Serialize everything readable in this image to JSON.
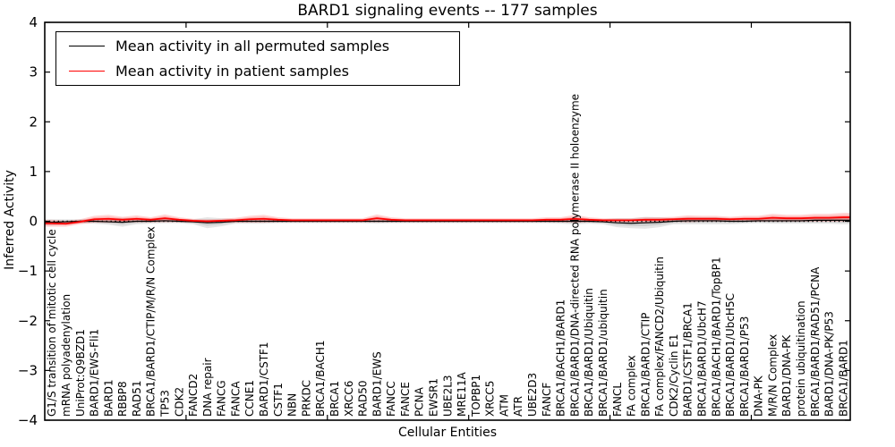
{
  "figure": {
    "title": "BARD1 signaling events -- 177 samples",
    "xlabel": "Cellular Entities",
    "ylabel": "Inferred Activity"
  },
  "legend": {
    "items": [
      {
        "label": "Mean activity in all permuted samples",
        "color": "#000000"
      },
      {
        "label": "Mean activity in patient samples",
        "color": "#ff0000"
      }
    ]
  },
  "colors": {
    "permuted_line": "#000000",
    "permuted_band": "rgba(0,0,0,0.10)",
    "patient_line": "#ff0000",
    "patient_band": "rgba(255,0,0,0.16)",
    "zero_line": "#000000",
    "spine": "#000000"
  },
  "chart_data": {
    "type": "line",
    "title": "BARD1 signaling events -- 177 samples",
    "xlabel": "Cellular Entities",
    "ylabel": "Inferred Activity",
    "ylim": [
      -4,
      4
    ],
    "grid": false,
    "zero_line_dotted": true,
    "legend_position": "upper left",
    "yticks": [
      {
        "v": 4,
        "label": "4"
      },
      {
        "v": 3,
        "label": "3"
      },
      {
        "v": 2,
        "label": "2"
      },
      {
        "v": 1,
        "label": "1"
      },
      {
        "v": 0,
        "label": "0"
      },
      {
        "v": -1,
        "label": "−1"
      },
      {
        "v": -2,
        "label": "−2"
      },
      {
        "v": -3,
        "label": "−3"
      },
      {
        "v": -4,
        "label": "−4"
      }
    ],
    "x_major_ticks": [
      10,
      20,
      30,
      40,
      50
    ],
    "categories": [
      "G1/S transition of mitotic cell cycle",
      "mRNA polyadenylation",
      "UniProt:Q9BZD1",
      "BARD1/EWS-Fli1",
      "BARD1",
      "RBBP8",
      "RAD51",
      "BRCA1/BARD1/CTIP/M/R/N Complex",
      "TP53",
      "CDK2",
      "FANCD2",
      "DNA repair",
      "FANCG",
      "FANCA",
      "CCNE1",
      "BARD1/CSTF1",
      "CSTF1",
      "NBN",
      "PRKDC",
      "BRCA1/BACH1",
      "BRCA1",
      "XRCC6",
      "RAD50",
      "BARD1/EWS",
      "FANCC",
      "FANCE",
      "PCNA",
      "EWSR1",
      "UBE2L3",
      "MRE11A",
      "TOPBP1",
      "XRCC5",
      "ATM",
      "ATR",
      "UBE2D3",
      "FANCF",
      "BRCA1/BACH1/BARD1",
      "BRCA1/BARD1/DNA-directed RNA polymerase II holoenzyme",
      "BRCA1/BARD1/Ubiquitin",
      "BRCA1/BARD1/ubiquitin",
      "FANCL",
      "FA complex",
      "BRCA1/BARD1/CTIP",
      "FA complex/FANCD2/Ubiquitin",
      "CDK2/Cyclin E1",
      "BARD1/CSTF1/BRCA1",
      "BRCA1/BARD1/UbcH7",
      "BRCA1/BACH1/BARD1/TopBP1",
      "BRCA1/BARD1/UbcH5C",
      "BRCA1/BARD1/P53",
      "DNA-PK",
      "M/R/N Complex",
      "BARD1/DNA-PK",
      "protein ubiquitination",
      "BRCA1/BARD1/RAD51/PCNA",
      "BARD1/DNA-PK/P53",
      "BRCA1/BARD1"
    ],
    "series": [
      {
        "name": "Mean activity in all permuted samples",
        "color": "#000000",
        "band_color": "rgba(0,0,0,0.10)",
        "line_width": 1.2,
        "values": [
          -0.02,
          -0.01,
          0.0,
          0.0,
          -0.01,
          -0.02,
          0.0,
          0.0,
          0.01,
          0.0,
          -0.01,
          -0.03,
          -0.02,
          0.0,
          0.0,
          0.0,
          0.0,
          0.0,
          0.0,
          0.0,
          0.0,
          0.0,
          0.0,
          0.0,
          0.0,
          0.0,
          0.0,
          0.0,
          0.0,
          0.0,
          0.0,
          0.0,
          0.0,
          0.0,
          0.0,
          0.0,
          0.0,
          0.0,
          0.0,
          -0.01,
          -0.03,
          -0.04,
          -0.03,
          -0.02,
          0.0,
          0.01,
          0.01,
          0.01,
          0.0,
          0.0,
          0.01,
          0.01,
          0.01,
          0.01,
          0.02,
          0.02,
          0.02
        ],
        "band_halfwidth": [
          0.06,
          0.05,
          0.04,
          0.05,
          0.06,
          0.09,
          0.06,
          0.05,
          0.05,
          0.04,
          0.05,
          0.11,
          0.08,
          0.05,
          0.05,
          0.05,
          0.04,
          0.04,
          0.04,
          0.04,
          0.04,
          0.04,
          0.04,
          0.05,
          0.04,
          0.04,
          0.04,
          0.04,
          0.04,
          0.04,
          0.04,
          0.04,
          0.04,
          0.04,
          0.04,
          0.04,
          0.05,
          0.06,
          0.05,
          0.05,
          0.09,
          0.1,
          0.12,
          0.1,
          0.06,
          0.07,
          0.07,
          0.07,
          0.06,
          0.05,
          0.05,
          0.06,
          0.06,
          0.06,
          0.07,
          0.07,
          0.08
        ]
      },
      {
        "name": "Mean activity in patient samples",
        "color": "#ff0000",
        "band_color": "rgba(255,0,0,0.16)",
        "line_width": 1.8,
        "values": [
          -0.04,
          -0.05,
          -0.01,
          0.04,
          0.05,
          0.03,
          0.05,
          0.03,
          0.06,
          0.03,
          0.01,
          0.0,
          0.01,
          0.02,
          0.04,
          0.05,
          0.03,
          0.02,
          0.02,
          0.02,
          0.02,
          0.02,
          0.02,
          0.06,
          0.03,
          0.02,
          0.02,
          0.02,
          0.02,
          0.02,
          0.02,
          0.02,
          0.02,
          0.02,
          0.02,
          0.03,
          0.03,
          0.05,
          0.03,
          0.02,
          0.02,
          0.02,
          0.03,
          0.03,
          0.04,
          0.05,
          0.05,
          0.05,
          0.04,
          0.05,
          0.05,
          0.07,
          0.06,
          0.06,
          0.07,
          0.07,
          0.08
        ],
        "band_halfwidth": [
          0.07,
          0.06,
          0.05,
          0.07,
          0.08,
          0.06,
          0.07,
          0.05,
          0.08,
          0.05,
          0.04,
          0.04,
          0.04,
          0.05,
          0.07,
          0.08,
          0.05,
          0.04,
          0.04,
          0.04,
          0.04,
          0.04,
          0.04,
          0.08,
          0.05,
          0.04,
          0.04,
          0.04,
          0.04,
          0.04,
          0.04,
          0.04,
          0.04,
          0.04,
          0.04,
          0.05,
          0.05,
          0.08,
          0.05,
          0.04,
          0.04,
          0.04,
          0.05,
          0.05,
          0.05,
          0.07,
          0.06,
          0.06,
          0.05,
          0.06,
          0.06,
          0.08,
          0.07,
          0.07,
          0.08,
          0.08,
          0.09
        ]
      }
    ]
  }
}
